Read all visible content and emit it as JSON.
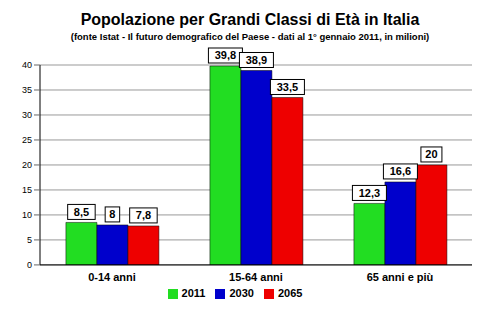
{
  "chart_data": {
    "type": "bar",
    "title": "Popolazione per Grandi Classi di Età in Italia",
    "subtitle": "(fonte Istat - Il futuro demografico del Paese -  dati al 1° gennaio 2011, in milioni)",
    "categories": [
      "0-14 anni",
      "15-64 anni",
      "65 anni e più"
    ],
    "series": [
      {
        "name": "2011",
        "color": "#22dd22",
        "values": [
          8.5,
          39.8,
          12.3
        ],
        "value_labels": [
          "8,5",
          "39,8",
          "12,3"
        ]
      },
      {
        "name": "2030",
        "color": "#0000cc",
        "values": [
          8,
          38.9,
          16.6
        ],
        "value_labels": [
          "8",
          "38,9",
          "16,6"
        ]
      },
      {
        "name": "2065",
        "color": "#ee0000",
        "values": [
          7.8,
          33.5,
          20
        ],
        "value_labels": [
          "7,8",
          "33,5",
          "20"
        ]
      }
    ],
    "ylim": [
      0,
      40
    ],
    "yticks": [
      0,
      5,
      10,
      15,
      20,
      25,
      30,
      35,
      40
    ],
    "grid": true,
    "data_labels": true,
    "legend": "bottom"
  }
}
